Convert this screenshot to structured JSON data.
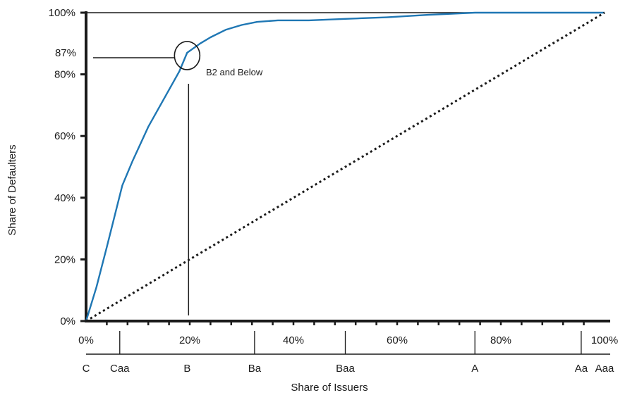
{
  "chart_data": {
    "type": "line",
    "title": "",
    "xlabel": "Share of Issuers",
    "ylabel": "Share of Defaulters",
    "xlim": [
      0,
      100
    ],
    "ylim": [
      0,
      100
    ],
    "grid": false,
    "x_ticks": [
      "0%",
      "20%",
      "40%",
      "60%",
      "80%",
      "100%"
    ],
    "x_tick_values": [
      0,
      20,
      40,
      60,
      80,
      100
    ],
    "y_ticks": [
      "0%",
      "20%",
      "40%",
      "60%",
      "80%",
      "100%"
    ],
    "y_tick_values": [
      0,
      20,
      40,
      60,
      80,
      100
    ],
    "rating_labels": [
      "C",
      "Caa",
      "B",
      "Ba",
      "Baa",
      "A",
      "Aa",
      "Aaa"
    ],
    "rating_positions": [
      0,
      6.5,
      19.5,
      32.5,
      50,
      75,
      95.5,
      100
    ],
    "rating_dividers": [
      6.5,
      32.5,
      50,
      75,
      95.5
    ],
    "series": [
      {
        "color": "#1f77b4",
        "style": "solid",
        "x": [
          0,
          2,
          4,
          7,
          9,
          12,
          15,
          18,
          19.5,
          22,
          24,
          27,
          30,
          33,
          37,
          43,
          50,
          58,
          66,
          75,
          85,
          100
        ],
        "y": [
          0,
          11,
          24,
          44,
          52,
          63,
          72,
          81,
          87,
          90,
          92,
          94.5,
          96,
          97,
          97.5,
          97.5,
          98,
          98.5,
          99.3,
          100,
          100,
          100
        ]
      },
      {
        "color": "#1a1a1a",
        "style": "dotted",
        "x": [
          0,
          100
        ],
        "y": [
          0,
          100
        ]
      }
    ],
    "annotations": [
      {
        "type": "highlight",
        "label": "87%",
        "x": 19.5,
        "y": 87
      },
      {
        "type": "text",
        "label": "B2 and Below"
      }
    ]
  }
}
